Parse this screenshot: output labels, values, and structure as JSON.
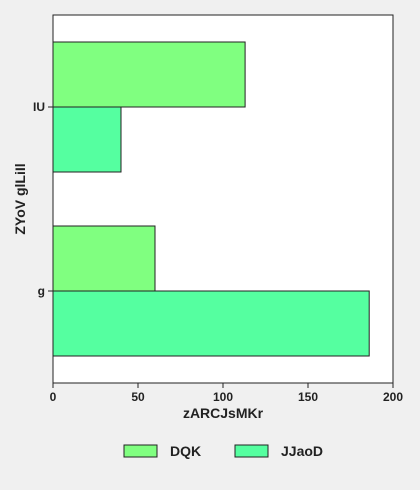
{
  "chart_data": {
    "type": "bar",
    "orientation": "horizontal",
    "categories": [
      "IU",
      "g"
    ],
    "series": [
      {
        "name": "DQK",
        "values": [
          113,
          60
        ],
        "color": "#80ff80"
      },
      {
        "name": "JJaoD",
        "values": [
          40,
          186
        ],
        "color": "#55ffa0"
      }
    ],
    "xlabel": "zARCJsMKr",
    "ylabel": "ZYoV glLiIl",
    "xlim": [
      0,
      200
    ],
    "xticks": [
      0,
      50,
      100,
      150,
      200
    ],
    "grid": false,
    "legend_position": "bottom",
    "colors": {
      "background": "#f0f0f0",
      "plot_background": "#ffffff",
      "bar_border": "#222222",
      "text": "#222222"
    }
  }
}
